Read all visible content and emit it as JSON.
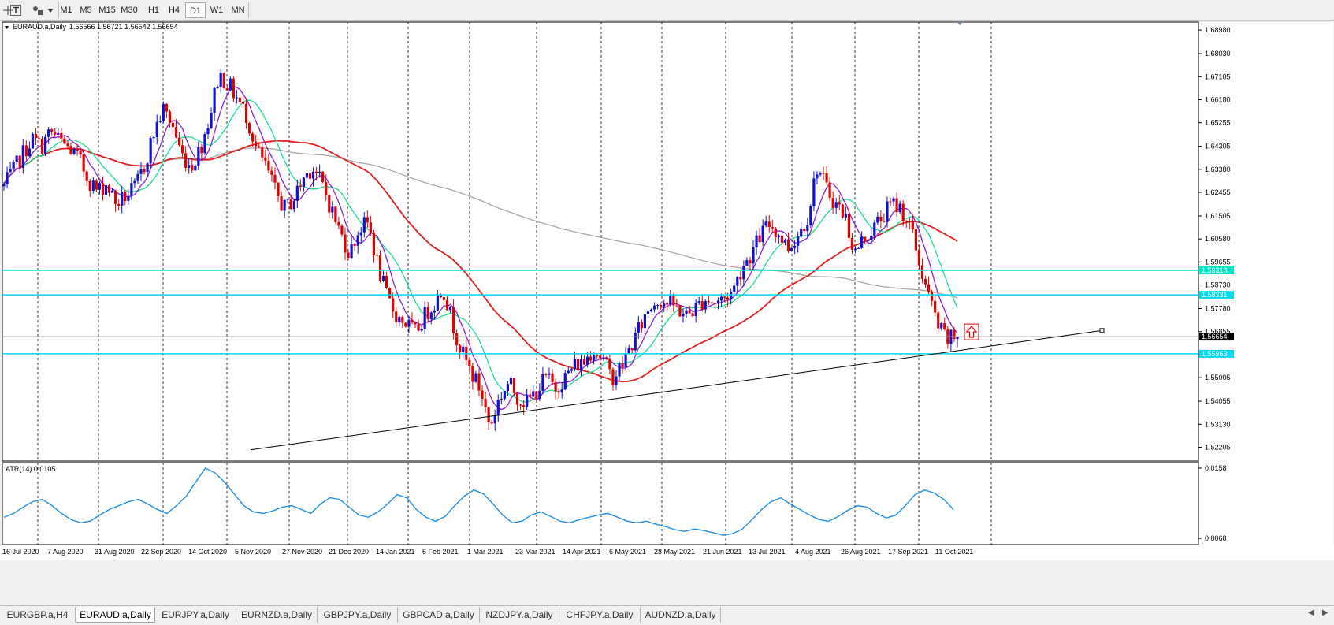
{
  "toolbar": {
    "timeframes": [
      "M1",
      "M5",
      "M15",
      "M30",
      "H1",
      "H4",
      "D1",
      "W1",
      "MN"
    ],
    "active_timeframe": "D1"
  },
  "chart_data": [
    {
      "type": "candlestick",
      "title": "EURAUD.a,Daily",
      "ohlc_text": "1.56566 1.56721 1.56542 1.56654",
      "ylim": [
        1.5165,
        1.693
      ],
      "y_ticks": [
        "1.68980",
        "1.68030",
        "1.67105",
        "1.66180",
        "1.65255",
        "1.64305",
        "1.63380",
        "1.62455",
        "1.61505",
        "1.60580",
        "1.59655",
        "1.58730",
        "1.57780",
        "1.56855",
        "1.55930",
        "1.55005",
        "1.54055",
        "1.53130",
        "1.52205"
      ],
      "x_ticks": [
        "16 Jul 2020",
        "7 Aug 2020",
        "31 Aug 2020",
        "22 Sep 2020",
        "14 Oct 2020",
        "5 Nov 2020",
        "27 Nov 2020",
        "21 Dec 2020",
        "14 Jan 2021",
        "5 Feb 2021",
        "1 Mar 2021",
        "23 Mar 2021",
        "14 Apr 2021",
        "6 May 2021",
        "28 May 2021",
        "21 Jun 2021",
        "13 Jul 2021",
        "4 Aug 2021",
        "26 Aug 2021",
        "17 Sep 2021",
        "11 Oct 2021"
      ],
      "closes": [
        1.627,
        1.633,
        1.64,
        1.646,
        1.643,
        1.649,
        1.645,
        1.642,
        1.638,
        1.63,
        1.625,
        1.628,
        1.62,
        1.623,
        1.626,
        1.635,
        1.648,
        1.658,
        1.652,
        1.64,
        1.635,
        1.642,
        1.655,
        1.672,
        1.668,
        1.662,
        1.655,
        1.642,
        1.635,
        1.625,
        1.618,
        1.622,
        1.63,
        1.635,
        1.628,
        1.618,
        1.608,
        1.6,
        1.61,
        1.612,
        1.595,
        1.582,
        1.575,
        1.572,
        1.568,
        1.575,
        1.58,
        1.586,
        1.572,
        1.56,
        1.552,
        1.545,
        1.53,
        1.542,
        1.548,
        1.542,
        1.54,
        1.545,
        1.55,
        1.546,
        1.55,
        1.555,
        1.556,
        1.562,
        1.558,
        1.55,
        1.554,
        1.562,
        1.57,
        1.578,
        1.582,
        1.58,
        1.578,
        1.575,
        1.578,
        1.582,
        1.58,
        1.582,
        1.585,
        1.595,
        1.6,
        1.608,
        1.612,
        1.607,
        1.602,
        1.608,
        1.615,
        1.635,
        1.626,
        1.62,
        1.615,
        1.6,
        1.606,
        1.61,
        1.615,
        1.62,
        1.618,
        1.61,
        1.595,
        1.582,
        1.57,
        1.565,
        1.5665
      ],
      "series": [
        {
          "name": "",
          "color": "#8b1fd6"
        },
        {
          "name": "",
          "color": "#17e08a"
        },
        {
          "name": "",
          "color": "#e01f1f"
        },
        {
          "name": "",
          "color": "#a6a6a6"
        }
      ],
      "horizontal_levels": [
        {
          "label": "1.59318",
          "value": 1.59318,
          "color": "#00e6c8"
        },
        {
          "label": "1.58331",
          "value": 1.58331,
          "color": "#00d8f0"
        },
        {
          "label": "1.55963",
          "value": 1.55963,
          "color": "#00d8f0"
        }
      ],
      "current_price": {
        "label": "1.56654",
        "value": 1.56654
      },
      "trendline": {
        "x_start": "5 Nov 2020",
        "y_start": 1.521,
        "x_end": "11 Oct 2021",
        "y_end": 1.569
      },
      "grid": true
    },
    {
      "type": "line",
      "title": "ATR(14) 0.0105",
      "ylim": [
        0.006,
        0.0165
      ],
      "y_ticks": [
        "0.0158",
        "0.0068"
      ],
      "values": [
        0.0095,
        0.01,
        0.0108,
        0.0115,
        0.0118,
        0.011,
        0.01,
        0.0092,
        0.0088,
        0.009,
        0.0098,
        0.0105,
        0.011,
        0.0115,
        0.0118,
        0.0112,
        0.0105,
        0.01,
        0.011,
        0.0122,
        0.014,
        0.0158,
        0.0152,
        0.014,
        0.0125,
        0.011,
        0.0102,
        0.01,
        0.0103,
        0.0108,
        0.011,
        0.0105,
        0.01,
        0.0112,
        0.012,
        0.0118,
        0.0108,
        0.0098,
        0.0095,
        0.0102,
        0.0112,
        0.0124,
        0.012,
        0.0105,
        0.0095,
        0.009,
        0.0096,
        0.011,
        0.0122,
        0.013,
        0.0125,
        0.0112,
        0.0098,
        0.0088,
        0.009,
        0.0098,
        0.0102,
        0.0096,
        0.009,
        0.0088,
        0.0092,
        0.0095,
        0.0098,
        0.01,
        0.0095,
        0.009,
        0.0088,
        0.009,
        0.0086,
        0.0083,
        0.0079,
        0.0077,
        0.008,
        0.0078,
        0.0075,
        0.0072,
        0.0074,
        0.008,
        0.0092,
        0.0105,
        0.0115,
        0.012,
        0.0112,
        0.0105,
        0.0098,
        0.0092,
        0.009,
        0.0096,
        0.0104,
        0.011,
        0.0108,
        0.01,
        0.0094,
        0.0098,
        0.011,
        0.0124,
        0.013,
        0.0126,
        0.0118,
        0.0105
      ],
      "series": [
        {
          "name": "",
          "color": "#1e8fe6"
        }
      ]
    }
  ],
  "tabs": [
    "EURGBP.a,H4",
    "EURAUD.a,Daily",
    "EURJPY.a,Daily",
    "EURNZD.a,Daily",
    "GBPJPY.a,Daily",
    "GBPCAD.a,Daily",
    "NZDJPY.a,Daily",
    "CHFJPY.a,Daily",
    "AUDNZD.a,Daily"
  ],
  "active_tab": "EURAUD.a,Daily",
  "icons": [
    "crosshair-icon",
    "text-tool-icon",
    "shapes-tool-icon",
    "sell-arrow-icon"
  ]
}
